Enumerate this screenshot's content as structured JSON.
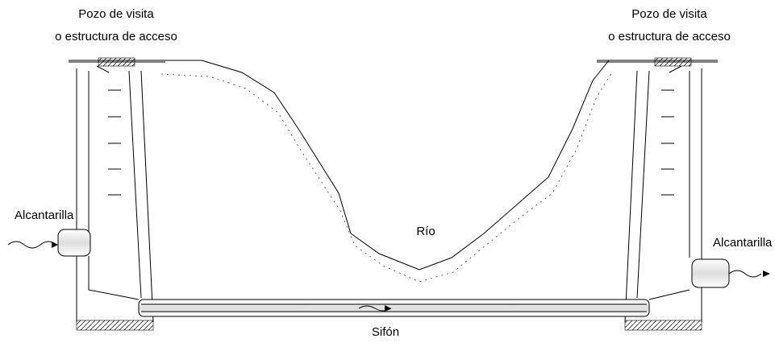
{
  "left_manhole": {
    "line1": "Pozo de visita",
    "line2": "o estructura de acceso"
  },
  "right_manhole": {
    "line1": "Pozo de visita",
    "line2": "o estructura de acceso"
  },
  "left_sewer": "Alcantarilla",
  "right_sewer": "Alcantarilla",
  "river": "Río",
  "siphon": "Sifón"
}
